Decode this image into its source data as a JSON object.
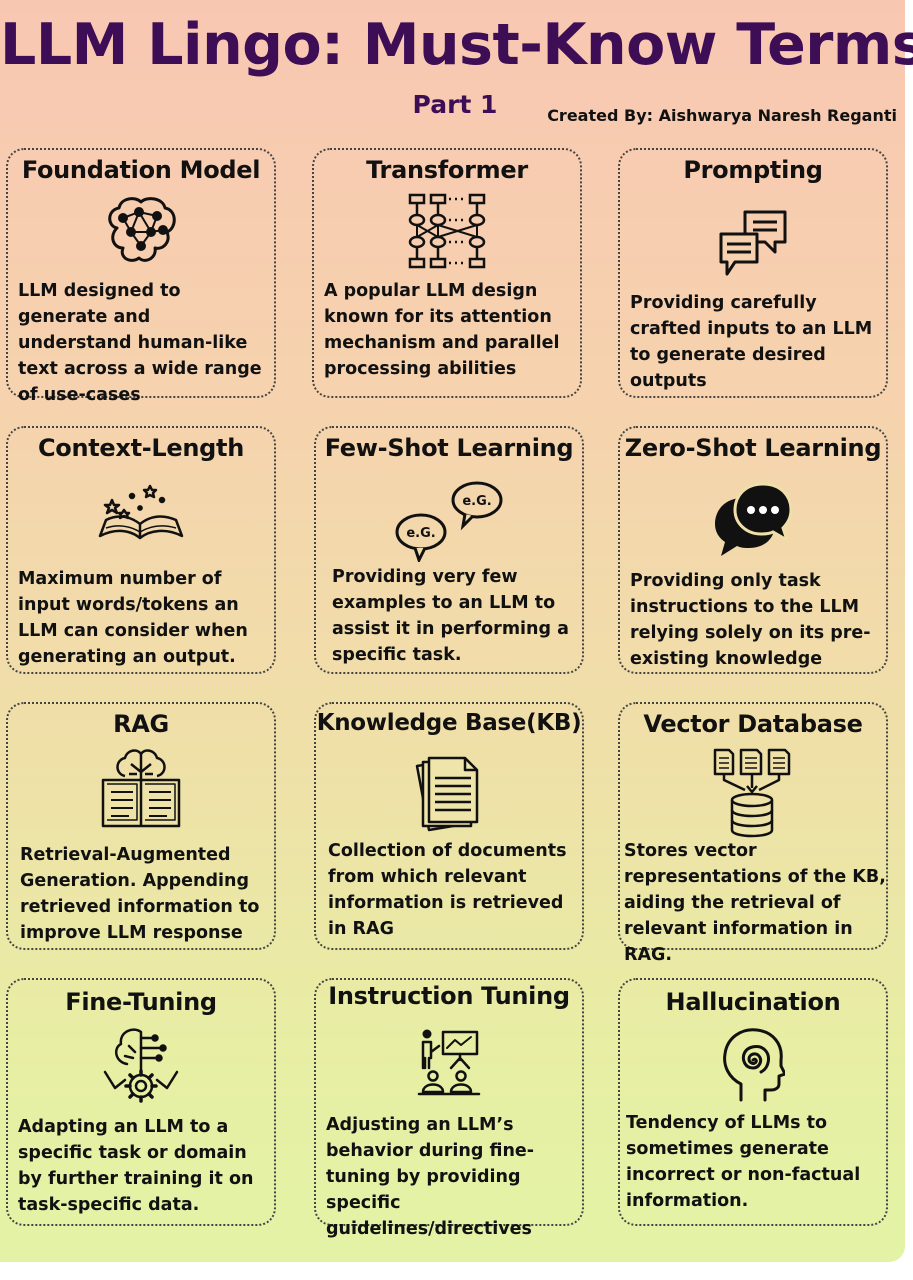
{
  "header": {
    "title": "LLM Lingo: Must-Know Terms",
    "subtitle": "Part 1",
    "credit": "Created By: Aishwarya Naresh Reganti"
  },
  "cards": [
    {
      "title": "Foundation Model",
      "icon": "brain-network-icon",
      "description": "LLM designed to generate and understand human-like text across a wide range of use-cases"
    },
    {
      "title": "Transformer",
      "icon": "neural-network-icon",
      "description": "A popular LLM design known for its attention mechanism and parallel processing abilities"
    },
    {
      "title": "Prompting",
      "icon": "chat-bubbles-icon",
      "description": "Providing carefully crafted inputs to an LLM to generate desired outputs"
    },
    {
      "title": "Context-Length",
      "icon": "open-book-stars-icon",
      "description": "Maximum number of input words/tokens an LLM can consider when generating an output."
    },
    {
      "title": "Few-Shot Learning",
      "icon": "example-bubbles-icon",
      "description": "Providing very few examples to an LLM to assist it in performing a specific task."
    },
    {
      "title": "Zero-Shot Learning",
      "icon": "speech-bubbles-icon",
      "description": "Providing only task instructions to the LLM relying solely on its pre-existing knowledge"
    },
    {
      "title": "RAG",
      "icon": "brain-book-icon",
      "description": "Retrieval-Augmented Generation. Appending retrieved information to improve LLM response"
    },
    {
      "title": "Knowledge Base(KB)",
      "icon": "documents-icon",
      "description": "Collection of documents from which relevant information is retrieved in RAG"
    },
    {
      "title": "Vector Database",
      "icon": "database-icon",
      "description": "Stores vector representations of the KB, aiding the retrieval of relevant  information in RAG."
    },
    {
      "title": "Fine-Tuning",
      "icon": "tree-gear-icon",
      "description": "Adapting an LLM to a specific task or domain by further training it on task-specific data."
    },
    {
      "title": "Instruction Tuning",
      "icon": "presentation-icon",
      "description": "Adjusting an LLM’s behavior during fine-tuning by providing specific guidelines/directives"
    },
    {
      "title": "Hallucination",
      "icon": "spiral-head-icon",
      "description": "Tendency of LLMs to sometimes generate incorrect or non-factual information."
    }
  ],
  "icon_labels": {
    "example_a": "e.G.",
    "example_b": "e.G."
  }
}
